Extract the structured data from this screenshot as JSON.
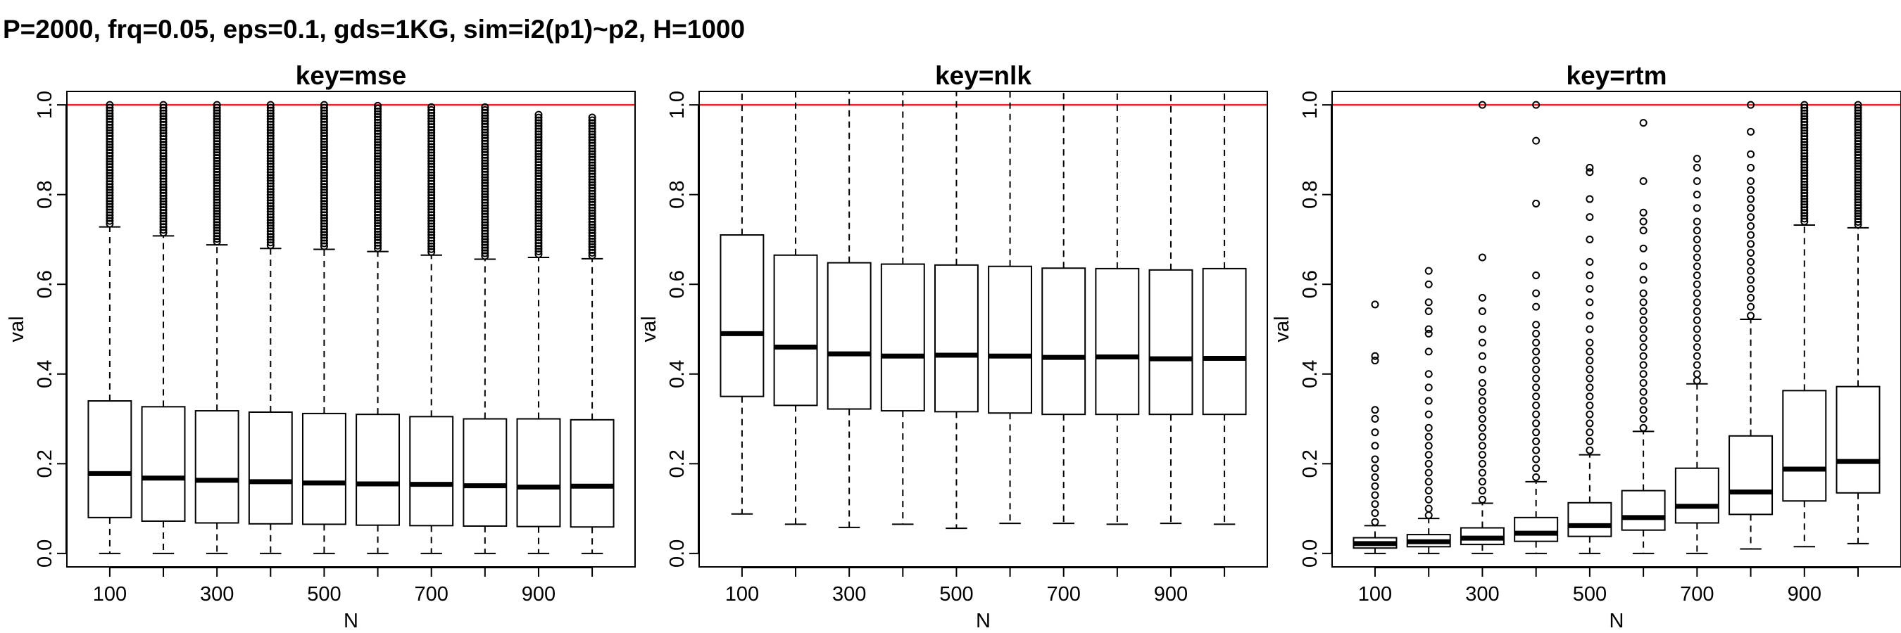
{
  "title": "P=2000, frq=0.05, eps=0.1, gds=1KG, sim=i2(p1)~p2, H=1000",
  "colors": {
    "reference_line": "#e8262a",
    "box_stroke": "#000000",
    "box_fill": "#ffffff"
  },
  "chart_data": [
    {
      "type": "boxplot",
      "title": "key=mse",
      "xlabel": "N",
      "ylabel": "val",
      "ylim": [
        -0.03,
        1.03
      ],
      "yticks": [
        "0.0",
        "0.2",
        "0.4",
        "0.6",
        "0.8",
        "1.0"
      ],
      "categories": [
        "100",
        "200",
        "300",
        "400",
        "500",
        "600",
        "700",
        "800",
        "900",
        "1000"
      ],
      "xtick_labels": [
        "100",
        "",
        "300",
        "",
        "500",
        "",
        "700",
        "",
        "900",
        ""
      ],
      "reference_line": 1.0,
      "boxes": [
        {
          "x": 100,
          "whisker_low": 0.0,
          "q1": 0.08,
          "median": 0.178,
          "q3": 0.34,
          "whisker_high": 0.728,
          "outliers_min": 0.735,
          "outliers_max": 1.0
        },
        {
          "x": 200,
          "whisker_low": 0.0,
          "q1": 0.072,
          "median": 0.168,
          "q3": 0.327,
          "whisker_high": 0.708,
          "outliers_min": 0.715,
          "outliers_max": 1.0
        },
        {
          "x": 300,
          "whisker_low": 0.0,
          "q1": 0.068,
          "median": 0.163,
          "q3": 0.318,
          "whisker_high": 0.688,
          "outliers_min": 0.695,
          "outliers_max": 1.0
        },
        {
          "x": 400,
          "whisker_low": 0.0,
          "q1": 0.066,
          "median": 0.16,
          "q3": 0.315,
          "whisker_high": 0.68,
          "outliers_min": 0.687,
          "outliers_max": 1.0
        },
        {
          "x": 500,
          "whisker_low": 0.0,
          "q1": 0.065,
          "median": 0.157,
          "q3": 0.312,
          "whisker_high": 0.678,
          "outliers_min": 0.685,
          "outliers_max": 1.0
        },
        {
          "x": 600,
          "whisker_low": 0.0,
          "q1": 0.063,
          "median": 0.155,
          "q3": 0.31,
          "whisker_high": 0.673,
          "outliers_min": 0.68,
          "outliers_max": 0.998
        },
        {
          "x": 700,
          "whisker_low": 0.0,
          "q1": 0.062,
          "median": 0.154,
          "q3": 0.305,
          "whisker_high": 0.665,
          "outliers_min": 0.672,
          "outliers_max": 0.995
        },
        {
          "x": 800,
          "whisker_low": 0.0,
          "q1": 0.061,
          "median": 0.151,
          "q3": 0.3,
          "whisker_high": 0.656,
          "outliers_min": 0.663,
          "outliers_max": 0.995
        },
        {
          "x": 900,
          "whisker_low": 0.0,
          "q1": 0.06,
          "median": 0.148,
          "q3": 0.3,
          "whisker_high": 0.66,
          "outliers_min": 0.667,
          "outliers_max": 0.978
        },
        {
          "x": 1000,
          "whisker_low": 0.0,
          "q1": 0.059,
          "median": 0.15,
          "q3": 0.298,
          "whisker_high": 0.657,
          "outliers_min": 0.664,
          "outliers_max": 0.972
        }
      ]
    },
    {
      "type": "boxplot",
      "title": "key=nlk",
      "xlabel": "N",
      "ylabel": "val",
      "ylim": [
        -0.03,
        1.03
      ],
      "yticks": [
        "0.0",
        "0.2",
        "0.4",
        "0.6",
        "0.8",
        "1.0"
      ],
      "categories": [
        "100",
        "200",
        "300",
        "400",
        "500",
        "600",
        "700",
        "800",
        "900",
        "1000"
      ],
      "xtick_labels": [
        "100",
        "",
        "300",
        "",
        "500",
        "",
        "700",
        "",
        "900",
        ""
      ],
      "reference_line": 1.0,
      "boxes": [
        {
          "x": 100,
          "whisker_low": 0.088,
          "q1": 0.35,
          "median": 0.49,
          "q3": 0.71,
          "whisker_high": 1.03
        },
        {
          "x": 200,
          "whisker_low": 0.065,
          "q1": 0.33,
          "median": 0.46,
          "q3": 0.665,
          "whisker_high": 1.03
        },
        {
          "x": 300,
          "whisker_low": 0.058,
          "q1": 0.322,
          "median": 0.445,
          "q3": 0.648,
          "whisker_high": 1.03
        },
        {
          "x": 400,
          "whisker_low": 0.065,
          "q1": 0.318,
          "median": 0.44,
          "q3": 0.645,
          "whisker_high": 1.03
        },
        {
          "x": 500,
          "whisker_low": 0.056,
          "q1": 0.316,
          "median": 0.442,
          "q3": 0.643,
          "whisker_high": 1.03
        },
        {
          "x": 600,
          "whisker_low": 0.067,
          "q1": 0.313,
          "median": 0.44,
          "q3": 0.64,
          "whisker_high": 1.03
        },
        {
          "x": 700,
          "whisker_low": 0.067,
          "q1": 0.31,
          "median": 0.437,
          "q3": 0.636,
          "whisker_high": 1.03
        },
        {
          "x": 800,
          "whisker_low": 0.065,
          "q1": 0.31,
          "median": 0.438,
          "q3": 0.635,
          "whisker_high": 1.03
        },
        {
          "x": 900,
          "whisker_low": 0.067,
          "q1": 0.31,
          "median": 0.434,
          "q3": 0.632,
          "whisker_high": 1.03
        },
        {
          "x": 1000,
          "whisker_low": 0.065,
          "q1": 0.31,
          "median": 0.435,
          "q3": 0.635,
          "whisker_high": 1.03
        }
      ]
    },
    {
      "type": "boxplot",
      "title": "key=rtm",
      "xlabel": "N",
      "ylabel": "val",
      "ylim": [
        -0.03,
        1.03
      ],
      "yticks": [
        "0.0",
        "0.2",
        "0.4",
        "0.6",
        "0.8",
        "1.0"
      ],
      "categories": [
        "100",
        "200",
        "300",
        "400",
        "500",
        "600",
        "700",
        "800",
        "900",
        "1000"
      ],
      "xtick_labels": [
        "100",
        "",
        "300",
        "",
        "500",
        "",
        "700",
        "",
        "900",
        ""
      ],
      "reference_line": 1.0,
      "boxes": [
        {
          "x": 100,
          "whisker_low": 0.0,
          "q1": 0.012,
          "median": 0.022,
          "q3": 0.035,
          "whisker_high": 0.062,
          "outliers": [
            0.07,
            0.09,
            0.11,
            0.13,
            0.15,
            0.17,
            0.19,
            0.21,
            0.24,
            0.27,
            0.3,
            0.32,
            0.43,
            0.44,
            0.555
          ]
        },
        {
          "x": 200,
          "whisker_low": 0.0,
          "q1": 0.015,
          "median": 0.026,
          "q3": 0.042,
          "whisker_high": 0.078,
          "outliers": [
            0.085,
            0.1,
            0.12,
            0.14,
            0.16,
            0.18,
            0.2,
            0.22,
            0.24,
            0.26,
            0.28,
            0.31,
            0.34,
            0.37,
            0.4,
            0.45,
            0.49,
            0.5,
            0.54,
            0.56,
            0.6,
            0.63
          ]
        },
        {
          "x": 300,
          "whisker_low": 0.0,
          "q1": 0.02,
          "median": 0.034,
          "q3": 0.057,
          "whisker_high": 0.112,
          "outliers": [
            0.12,
            0.14,
            0.16,
            0.18,
            0.2,
            0.22,
            0.24,
            0.26,
            0.28,
            0.3,
            0.32,
            0.34,
            0.36,
            0.38,
            0.41,
            0.44,
            0.47,
            0.5,
            0.54,
            0.57,
            0.66,
            1.0
          ]
        },
        {
          "x": 400,
          "whisker_low": 0.0,
          "q1": 0.027,
          "median": 0.045,
          "q3": 0.08,
          "whisker_high": 0.16,
          "outliers": [
            0.17,
            0.19,
            0.21,
            0.23,
            0.25,
            0.27,
            0.29,
            0.31,
            0.33,
            0.35,
            0.37,
            0.39,
            0.41,
            0.43,
            0.45,
            0.47,
            0.49,
            0.51,
            0.55,
            0.58,
            0.62,
            0.78,
            0.92,
            1.0
          ]
        },
        {
          "x": 500,
          "whisker_low": 0.0,
          "q1": 0.038,
          "median": 0.062,
          "q3": 0.113,
          "whisker_high": 0.22,
          "outliers": [
            0.23,
            0.25,
            0.27,
            0.29,
            0.31,
            0.33,
            0.35,
            0.37,
            0.39,
            0.41,
            0.43,
            0.45,
            0.47,
            0.5,
            0.53,
            0.56,
            0.59,
            0.62,
            0.65,
            0.7,
            0.75,
            0.79,
            0.85,
            0.86
          ]
        },
        {
          "x": 600,
          "whisker_low": 0.0,
          "q1": 0.052,
          "median": 0.08,
          "q3": 0.14,
          "whisker_high": 0.272,
          "outliers": [
            0.28,
            0.3,
            0.32,
            0.34,
            0.36,
            0.38,
            0.4,
            0.42,
            0.44,
            0.46,
            0.48,
            0.5,
            0.52,
            0.54,
            0.56,
            0.58,
            0.61,
            0.64,
            0.68,
            0.72,
            0.74,
            0.76,
            0.83,
            0.96
          ]
        },
        {
          "x": 700,
          "whisker_low": 0.0,
          "q1": 0.068,
          "median": 0.105,
          "q3": 0.19,
          "whisker_high": 0.378,
          "outliers": [
            0.385,
            0.4,
            0.42,
            0.44,
            0.46,
            0.48,
            0.5,
            0.52,
            0.54,
            0.56,
            0.58,
            0.6,
            0.62,
            0.64,
            0.66,
            0.68,
            0.7,
            0.72,
            0.74,
            0.77,
            0.8,
            0.83,
            0.86,
            0.88
          ]
        },
        {
          "x": 800,
          "whisker_low": 0.01,
          "q1": 0.087,
          "median": 0.137,
          "q3": 0.262,
          "whisker_high": 0.522,
          "outliers": [
            0.53,
            0.55,
            0.57,
            0.59,
            0.61,
            0.63,
            0.65,
            0.67,
            0.69,
            0.71,
            0.73,
            0.75,
            0.77,
            0.79,
            0.81,
            0.83,
            0.86,
            0.89,
            0.94,
            1.0
          ]
        },
        {
          "x": 900,
          "whisker_low": 0.015,
          "q1": 0.117,
          "median": 0.188,
          "q3": 0.363,
          "whisker_high": 0.732,
          "outliers_min": 0.74,
          "outliers_max": 1.0
        },
        {
          "x": 1000,
          "whisker_low": 0.022,
          "q1": 0.135,
          "median": 0.205,
          "q3": 0.372,
          "whisker_high": 0.726,
          "outliers_min": 0.733,
          "outliers_max": 1.0
        }
      ]
    }
  ]
}
